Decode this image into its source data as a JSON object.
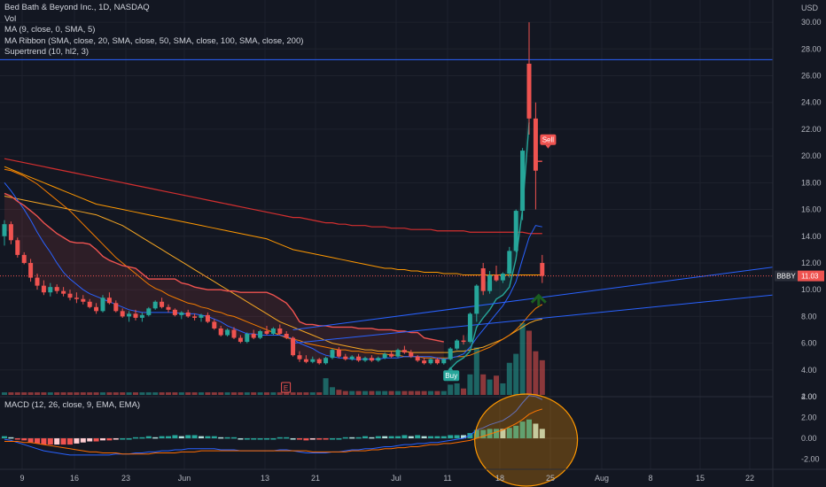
{
  "legend": {
    "title": "Bed Bath & Beyond Inc., 1D, NASDAQ",
    "lines": [
      "Vol",
      "MA (9, close, 0, SMA, 5)",
      "MA Ribbon (SMA, close, 20, SMA, close, 50, SMA, close, 100, SMA, close, 200)",
      "Supertrend (10, hl2, 3)"
    ]
  },
  "macd_legend": "MACD (12, 26, close, 9, EMA, EMA)",
  "price_label": {
    "ticker": "BBBY",
    "value": "11.03"
  },
  "currency": "USD",
  "signals": {
    "buy": "Buy",
    "sell": "Sell",
    "earnings": "E"
  },
  "colors": {
    "background": "#131722",
    "up": "#26a69a",
    "down": "#ef5350",
    "supertrend_up": "#26a69a",
    "supertrend_down": "#ef5350",
    "ma9": "#2962ff",
    "ma20": "#f57c00",
    "ma50": "#f5a623",
    "ma100": "#ff9800",
    "ma200": "#d32f2f",
    "macd": "#2962ff",
    "signal": "#ff6d00",
    "hline": "#2962ff",
    "circle": "#ff9800"
  },
  "chart_data": {
    "type": "candlestick",
    "y_axis": {
      "min": 2,
      "max": 31,
      "ticks": [
        "30.00",
        "28.00",
        "26.00",
        "24.00",
        "22.00",
        "20.00",
        "18.00",
        "16.00",
        "14.00",
        "12.00",
        "10.00",
        "8.00",
        "6.00",
        "4.00",
        "2.00"
      ]
    },
    "x_labels": [
      "9",
      "16",
      "23",
      "Jun",
      "13",
      "21",
      "Jul",
      "11",
      "18",
      "25",
      "Aug",
      "8",
      "15",
      "22"
    ],
    "macd_axis": {
      "ticks": [
        "4.00",
        "2.00",
        "0.00",
        "-2.00"
      ]
    },
    "horizontal_line": 27.2,
    "last_price": 11.03,
    "candles": [
      [
        14.0,
        15.2,
        13.3,
        14.9
      ],
      [
        14.9,
        15.1,
        13.4,
        13.7
      ],
      [
        13.7,
        13.9,
        12.4,
        12.6
      ],
      [
        12.6,
        12.8,
        11.9,
        12.0
      ],
      [
        12.0,
        12.3,
        10.6,
        10.9
      ],
      [
        10.9,
        11.2,
        10.0,
        10.3
      ],
      [
        10.3,
        10.7,
        9.6,
        9.8
      ],
      [
        9.8,
        10.5,
        9.5,
        10.2
      ],
      [
        10.2,
        10.4,
        9.7,
        9.9
      ],
      [
        9.9,
        10.2,
        9.5,
        9.7
      ],
      [
        9.7,
        10.0,
        9.2,
        9.4
      ],
      [
        9.4,
        9.8,
        9.0,
        9.3
      ],
      [
        9.3,
        9.6,
        8.9,
        9.1
      ],
      [
        9.1,
        9.3,
        8.6,
        8.7
      ],
      [
        8.7,
        9.0,
        8.2,
        8.4
      ],
      [
        8.4,
        9.6,
        8.3,
        9.4
      ],
      [
        9.4,
        9.8,
        8.9,
        9.0
      ],
      [
        9.0,
        9.2,
        8.3,
        8.4
      ],
      [
        8.4,
        8.6,
        7.9,
        8.0
      ],
      [
        8.0,
        8.4,
        7.6,
        8.2
      ],
      [
        8.2,
        8.5,
        7.7,
        7.9
      ],
      [
        7.9,
        8.3,
        7.6,
        8.1
      ],
      [
        8.1,
        8.7,
        8.0,
        8.6
      ],
      [
        8.6,
        9.2,
        8.5,
        9.1
      ],
      [
        9.1,
        9.4,
        8.6,
        8.7
      ],
      [
        8.7,
        8.9,
        8.3,
        8.5
      ],
      [
        8.5,
        8.6,
        8.0,
        8.1
      ],
      [
        8.1,
        8.4,
        7.8,
        8.3
      ],
      [
        8.3,
        8.5,
        7.9,
        8.0
      ],
      [
        8.0,
        8.2,
        7.7,
        7.9
      ],
      [
        7.9,
        8.2,
        7.6,
        8.1
      ],
      [
        8.1,
        8.3,
        7.5,
        7.6
      ],
      [
        7.6,
        7.8,
        7.0,
        7.1
      ],
      [
        7.1,
        7.3,
        6.5,
        6.6
      ],
      [
        6.6,
        7.1,
        6.5,
        7.0
      ],
      [
        7.0,
        7.2,
        6.3,
        6.4
      ],
      [
        6.4,
        6.6,
        6.0,
        6.1
      ],
      [
        6.1,
        6.8,
        6.0,
        6.7
      ],
      [
        6.7,
        7.0,
        6.3,
        6.4
      ],
      [
        6.4,
        7.0,
        6.3,
        6.9
      ],
      [
        6.9,
        7.3,
        6.6,
        6.7
      ],
      [
        6.7,
        7.2,
        6.6,
        7.1
      ],
      [
        7.1,
        7.4,
        6.6,
        6.7
      ],
      [
        6.7,
        6.9,
        6.3,
        6.4
      ],
      [
        6.4,
        6.5,
        5.0,
        5.1
      ],
      [
        5.1,
        5.4,
        4.6,
        4.8
      ],
      [
        4.8,
        5.1,
        4.5,
        4.6
      ],
      [
        4.6,
        5.0,
        4.5,
        4.8
      ],
      [
        4.8,
        4.9,
        4.4,
        4.5
      ],
      [
        4.5,
        5.0,
        4.4,
        4.9
      ],
      [
        4.9,
        5.6,
        4.8,
        5.5
      ],
      [
        5.5,
        5.7,
        4.9,
        5.0
      ],
      [
        5.0,
        5.2,
        4.7,
        4.8
      ],
      [
        4.8,
        5.1,
        4.7,
        5.0
      ],
      [
        5.0,
        5.2,
        4.6,
        4.7
      ],
      [
        4.7,
        5.0,
        4.6,
        4.9
      ],
      [
        4.9,
        5.1,
        4.6,
        4.7
      ],
      [
        4.7,
        5.0,
        4.6,
        4.9
      ],
      [
        4.9,
        5.3,
        4.8,
        5.2
      ],
      [
        5.2,
        5.4,
        4.9,
        5.0
      ],
      [
        5.0,
        5.6,
        4.9,
        5.5
      ],
      [
        5.5,
        5.8,
        5.2,
        5.3
      ],
      [
        5.3,
        5.5,
        4.9,
        5.0
      ],
      [
        5.0,
        5.1,
        4.6,
        4.7
      ],
      [
        4.7,
        4.9,
        4.4,
        4.5
      ],
      [
        4.5,
        4.9,
        4.4,
        4.8
      ],
      [
        4.8,
        4.9,
        4.4,
        4.5
      ],
      [
        4.5,
        4.9,
        4.4,
        4.8
      ],
      [
        4.8,
        5.7,
        4.7,
        5.6
      ],
      [
        5.6,
        6.3,
        5.5,
        6.2
      ],
      [
        6.2,
        6.6,
        5.9,
        6.1
      ],
      [
        6.1,
        8.3,
        6.0,
        8.2
      ],
      [
        8.2,
        10.4,
        7.6,
        10.3
      ],
      [
        11.6,
        12.0,
        9.6,
        9.9
      ],
      [
        9.9,
        11.4,
        9.7,
        11.1
      ],
      [
        11.1,
        11.8,
        10.6,
        10.7
      ],
      [
        10.7,
        11.3,
        10.5,
        11.2
      ],
      [
        11.2,
        13.2,
        10.9,
        12.9
      ],
      [
        12.9,
        16.0,
        12.8,
        15.9
      ],
      [
        15.9,
        20.6,
        15.2,
        20.4
      ],
      [
        26.9,
        30.0,
        21.6,
        22.8
      ],
      [
        22.8,
        24.0,
        16.0,
        18.9
      ],
      [
        12.0,
        12.6,
        10.5,
        11.03
      ]
    ],
    "volume": [
      0.2,
      0.2,
      0.2,
      0.2,
      0.2,
      0.2,
      0.2,
      0.2,
      0.2,
      0.2,
      0.2,
      0.2,
      0.2,
      0.2,
      0.2,
      0.2,
      0.2,
      0.2,
      0.2,
      0.2,
      0.2,
      0.2,
      0.2,
      0.2,
      0.2,
      0.2,
      0.2,
      0.2,
      0.2,
      0.2,
      0.2,
      0.2,
      0.2,
      0.2,
      0.2,
      0.2,
      0.2,
      0.2,
      0.2,
      0.2,
      0.2,
      0.2,
      0.2,
      0.2,
      0.2,
      0.2,
      0.2,
      0.2,
      0.2,
      1.3,
      0.6,
      0.4,
      0.3,
      0.3,
      0.3,
      0.3,
      0.3,
      0.3,
      0.3,
      0.3,
      0.3,
      0.3,
      0.3,
      0.3,
      0.3,
      0.3,
      0.3,
      0.3,
      0.8,
      0.9,
      0.5,
      1.6,
      3.7,
      1.6,
      1.2,
      1.5,
      0.9,
      2.5,
      3.2,
      5.6,
      5.0,
      3.4,
      2.7
    ],
    "ma9": [
      18.0,
      17.4,
      16.7,
      16.0,
      15.2,
      14.3,
      13.5,
      12.8,
      12.0,
      11.3,
      10.8,
      10.4,
      10.0,
      9.7,
      9.5,
      9.3,
      9.1,
      8.9,
      8.7,
      8.5,
      8.4,
      8.3,
      8.3,
      8.3,
      8.3,
      8.3,
      8.3,
      8.2,
      8.2,
      8.2,
      8.1,
      8.0,
      7.8,
      7.6,
      7.3,
      7.1,
      6.9,
      6.7,
      6.7,
      6.6,
      6.6,
      6.6,
      6.6,
      6.5,
      6.3,
      6.0,
      5.8,
      5.6,
      5.3,
      5.1,
      5.0,
      4.9,
      4.9,
      4.8,
      4.8,
      4.8,
      4.8,
      4.8,
      4.9,
      4.9,
      4.9,
      5.0,
      5.0,
      5.0,
      5.0,
      5.0,
      4.9,
      4.8,
      4.9,
      5.0,
      5.2,
      5.7,
      6.4,
      7.0,
      7.6,
      8.2,
      8.8,
      9.6,
      10.6,
      12.3,
      13.9,
      14.8,
      14.7
    ],
    "ma20": [
      19.0,
      18.9,
      18.7,
      18.5,
      18.2,
      17.9,
      17.5,
      17.1,
      16.7,
      16.3,
      15.9,
      15.4,
      14.9,
      14.4,
      13.9,
      13.4,
      12.9,
      12.4,
      12.0,
      11.6,
      11.2,
      10.8,
      10.4,
      10.1,
      9.9,
      9.6,
      9.4,
      9.2,
      9.0,
      8.9,
      8.7,
      8.6,
      8.4,
      8.3,
      8.1,
      8.0,
      7.8,
      7.6,
      7.4,
      7.2,
      7.0,
      6.8,
      6.6,
      6.4,
      6.3,
      6.2,
      6.0,
      5.9,
      5.8,
      5.7,
      5.6,
      5.5,
      5.5,
      5.4,
      5.4,
      5.3,
      5.3,
      5.2,
      5.2,
      5.1,
      5.1,
      5.0,
      5.0,
      5.0,
      4.9,
      4.9,
      4.9,
      4.9,
      4.9,
      5.0,
      5.0,
      5.1,
      5.3,
      5.5,
      5.7,
      6.0,
      6.3,
      6.6,
      7.0,
      7.5,
      8.1,
      8.6,
      8.9
    ],
    "ma50": [
      17.0,
      16.9,
      16.8,
      16.7,
      16.6,
      16.5,
      16.4,
      16.3,
      16.2,
      16.1,
      16.0,
      15.9,
      15.8,
      15.7,
      15.6,
      15.4,
      15.2,
      15.0,
      14.8,
      14.5,
      14.2,
      13.9,
      13.6,
      13.3,
      13.0,
      12.7,
      12.4,
      12.1,
      11.8,
      11.5,
      11.2,
      10.9,
      10.6,
      10.3,
      10.0,
      9.7,
      9.4,
      9.1,
      8.8,
      8.5,
      8.2,
      7.9,
      7.6,
      7.4,
      7.2,
      7.0,
      6.8,
      6.6,
      6.4,
      6.2,
      6.0,
      5.9,
      5.8,
      5.7,
      5.6,
      5.5,
      5.5,
      5.4,
      5.4,
      5.4,
      5.4,
      5.4,
      5.3,
      5.3,
      5.3,
      5.3,
      5.3,
      5.3,
      5.3,
      5.4,
      5.4,
      5.5,
      5.6,
      5.7,
      5.9,
      6.1,
      6.3,
      6.6,
      6.9,
      7.2,
      7.5,
      7.7,
      7.8
    ],
    "ma100": [
      19.2,
      19.0,
      18.8,
      18.6,
      18.4,
      18.2,
      18.0,
      17.8,
      17.6,
      17.4,
      17.2,
      17.0,
      16.8,
      16.6,
      16.4,
      16.3,
      16.2,
      16.1,
      16.0,
      15.9,
      15.8,
      15.7,
      15.6,
      15.5,
      15.4,
      15.3,
      15.2,
      15.1,
      15.0,
      14.9,
      14.8,
      14.7,
      14.6,
      14.5,
      14.4,
      14.3,
      14.2,
      14.1,
      14.0,
      13.9,
      13.8,
      13.6,
      13.4,
      13.2,
      13.0,
      12.9,
      12.8,
      12.7,
      12.6,
      12.5,
      12.4,
      12.3,
      12.2,
      12.1,
      12.0,
      11.9,
      11.8,
      11.7,
      11.6,
      11.6,
      11.5,
      11.5,
      11.4,
      11.4,
      11.3,
      11.3,
      11.3,
      11.2,
      11.2,
      11.2,
      11.1,
      11.1,
      11.1,
      11.1,
      11.1,
      11.1,
      11.1,
      11.1,
      11.1,
      11.1,
      11.1,
      11.1,
      11.1
    ],
    "ma200": [
      19.8,
      19.7,
      19.6,
      19.5,
      19.4,
      19.3,
      19.2,
      19.1,
      19.0,
      18.9,
      18.8,
      18.7,
      18.6,
      18.5,
      18.4,
      18.3,
      18.2,
      18.1,
      18.0,
      17.9,
      17.8,
      17.7,
      17.6,
      17.5,
      17.4,
      17.3,
      17.2,
      17.1,
      17.0,
      16.9,
      16.8,
      16.7,
      16.6,
      16.5,
      16.4,
      16.3,
      16.2,
      16.1,
      16.0,
      15.9,
      15.8,
      15.7,
      15.6,
      15.5,
      15.4,
      15.4,
      15.3,
      15.2,
      15.1,
      15.0,
      15.0,
      14.9,
      14.9,
      14.8,
      14.8,
      14.8,
      14.7,
      14.7,
      14.7,
      14.6,
      14.6,
      14.6,
      14.5,
      14.5,
      14.5,
      14.5,
      14.4,
      14.4,
      14.4,
      14.4,
      14.4,
      14.3,
      14.3,
      14.3,
      14.3,
      14.3,
      14.3,
      14.3,
      14.3,
      14.3,
      14.2,
      14.2,
      14.2
    ],
    "supertrend": [
      17.2,
      17.0,
      16.6,
      16.3,
      15.9,
      15.5,
      15.0,
      14.6,
      14.2,
      13.9,
      13.6,
      13.5,
      13.5,
      13.4,
      13.0,
      12.5,
      12.2,
      12.0,
      11.8,
      11.7,
      11.6,
      11.2,
      10.8,
      10.8,
      10.8,
      10.8,
      10.8,
      10.5,
      10.4,
      10.2,
      10.1,
      10.0,
      10.0,
      10.0,
      9.9,
      9.9,
      9.8,
      9.8,
      9.8,
      9.8,
      9.8,
      9.6,
      9.3,
      9.0,
      8.4,
      7.6,
      7.4,
      7.4,
      7.3,
      7.3,
      7.2,
      7.2,
      7.2,
      7.2,
      7.1,
      7.1,
      7.1,
      7.0,
      7.0,
      7.0,
      6.9,
      6.9,
      6.8,
      6.8,
      6.4,
      6.3,
      6.2,
      6.1,
      4.1,
      4.6,
      4.9,
      5.4,
      7.2,
      7.9,
      8.5,
      9.3,
      9.6,
      10.2,
      12.3,
      16.0,
      22.5,
      19.6,
      19.6
    ],
    "supertrend_flip_index": 68,
    "supertrend_down_from": 81,
    "buy_index": 68,
    "sell_index": 81,
    "earnings_index": 49,
    "macd": [
      -0.1,
      -0.2,
      -0.4,
      -0.6,
      -0.8,
      -1.0,
      -1.2,
      -1.3,
      -1.4,
      -1.5,
      -1.6,
      -1.6,
      -1.6,
      -1.6,
      -1.6,
      -1.6,
      -1.6,
      -1.5,
      -1.5,
      -1.5,
      -1.4,
      -1.4,
      -1.3,
      -1.3,
      -1.2,
      -1.2,
      -1.1,
      -1.1,
      -1.0,
      -1.0,
      -1.0,
      -1.0,
      -1.0,
      -1.1,
      -1.1,
      -1.1,
      -1.2,
      -1.2,
      -1.2,
      -1.2,
      -1.2,
      -1.2,
      -1.1,
      -1.1,
      -1.2,
      -1.3,
      -1.4,
      -1.4,
      -1.4,
      -1.4,
      -1.3,
      -1.3,
      -1.2,
      -1.1,
      -1.1,
      -1.0,
      -1.0,
      -0.9,
      -0.8,
      -0.8,
      -0.7,
      -0.6,
      -0.6,
      -0.5,
      -0.5,
      -0.4,
      -0.4,
      -0.3,
      -0.2,
      -0.1,
      0.0,
      0.3,
      0.8,
      1.0,
      1.3,
      1.5,
      1.7,
      2.1,
      2.6,
      3.4,
      4.1,
      4.0,
      3.7
    ],
    "signal": [
      -0.3,
      -0.3,
      -0.3,
      -0.4,
      -0.4,
      -0.5,
      -0.6,
      -0.7,
      -0.8,
      -0.9,
      -1.0,
      -1.1,
      -1.2,
      -1.3,
      -1.3,
      -1.4,
      -1.4,
      -1.4,
      -1.5,
      -1.5,
      -1.5,
      -1.5,
      -1.5,
      -1.4,
      -1.4,
      -1.4,
      -1.4,
      -1.3,
      -1.3,
      -1.3,
      -1.2,
      -1.2,
      -1.2,
      -1.2,
      -1.2,
      -1.2,
      -1.2,
      -1.2,
      -1.2,
      -1.2,
      -1.2,
      -1.2,
      -1.2,
      -1.2,
      -1.2,
      -1.2,
      -1.2,
      -1.3,
      -1.3,
      -1.3,
      -1.3,
      -1.3,
      -1.3,
      -1.2,
      -1.2,
      -1.2,
      -1.1,
      -1.1,
      -1.0,
      -1.0,
      -0.9,
      -0.9,
      -0.8,
      -0.8,
      -0.7,
      -0.6,
      -0.6,
      -0.5,
      -0.5,
      -0.4,
      -0.3,
      -0.2,
      0.0,
      0.2,
      0.4,
      0.6,
      0.8,
      1.1,
      1.4,
      1.8,
      2.3,
      2.6,
      2.8
    ]
  }
}
